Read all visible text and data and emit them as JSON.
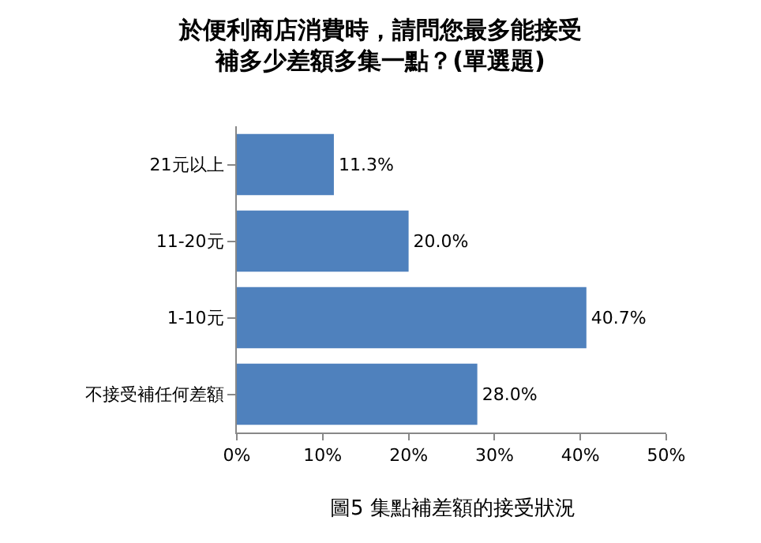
{
  "chart_data": {
    "type": "bar",
    "orientation": "horizontal",
    "title": "於便利商店消費時，請問您最多能接受補多少差額多集一點？(單選題)",
    "categories": [
      "21元以上",
      "11-20元",
      "1-10元",
      "不接受補任何差額"
    ],
    "values": [
      11.3,
      20.0,
      40.7,
      28.0
    ],
    "value_labels": [
      "11.3%",
      "20.0%",
      "40.7%",
      "28.0%"
    ],
    "color": "#4f81bd",
    "xlim": [
      0,
      50
    ],
    "xticks": [
      {
        "value": 0,
        "label": "0%"
      },
      {
        "value": 10,
        "label": "10%"
      },
      {
        "value": 20,
        "label": "20%"
      },
      {
        "value": 30,
        "label": "30%"
      },
      {
        "value": 40,
        "label": "40%"
      },
      {
        "value": 50,
        "label": "50%"
      }
    ],
    "legend": false,
    "annotations": [
      "圖5 集點補差額的接受狀況"
    ]
  }
}
